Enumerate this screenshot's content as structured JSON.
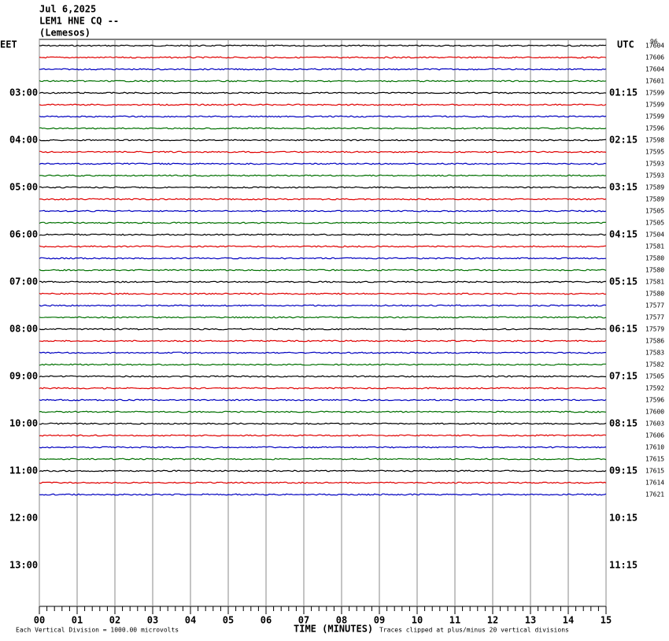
{
  "header": {
    "date": "Jul 6,2025",
    "station": "LEM1 HNE CQ --",
    "location": "(Lemesos)"
  },
  "left_axis": {
    "title": "EET",
    "labels": [
      "03:00",
      "04:00",
      "05:00",
      "06:00",
      "07:00",
      "08:00",
      "09:00",
      "10:00",
      "11:00",
      "12:00",
      "13:00"
    ]
  },
  "right_axis": {
    "title": "UTC",
    "labels": [
      "01:15",
      "02:15",
      "03:15",
      "04:15",
      "05:15",
      "06:15",
      "07:15",
      "08:15",
      "09:15",
      "10:15",
      "11:15"
    ]
  },
  "trace_labels": {
    "top": "96",
    "values": [
      17604,
      17606,
      17604,
      17601,
      17599,
      17599,
      17599,
      17596,
      17598,
      17595,
      17593,
      17593,
      17589,
      17589,
      17505,
      17505,
      17504,
      17581,
      17580,
      17580,
      17581,
      17580,
      17577,
      17577,
      17579,
      17586,
      17583,
      17582,
      17505,
      17592,
      17596,
      17600,
      17603,
      17606,
      17610,
      17615,
      17615,
      17614,
      17621
    ]
  },
  "x_axis": {
    "title": "TIME (MINUTES)",
    "labels": [
      "00",
      "01",
      "02",
      "03",
      "04",
      "05",
      "06",
      "07",
      "08",
      "09",
      "10",
      "11",
      "12",
      "13",
      "14",
      "15"
    ]
  },
  "footer": {
    "scale": "Each Vertical Division = 1000.00 microvolts",
    "clip": "Traces clipped at plus/minus 20 vertical divisions"
  }
}
